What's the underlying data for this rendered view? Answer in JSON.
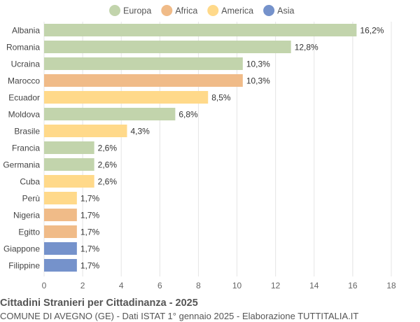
{
  "chart_data": {
    "type": "bar",
    "orientation": "horizontal",
    "title": "Cittadini Stranieri per Cittadinanza - 2025",
    "subtitle": "COMUNE DI AVEGNO (GE) - Dati ISTAT 1° gennaio 2025 - Elaborazione TUTTITALIA.IT",
    "legend": {
      "placement": "top",
      "entries": [
        {
          "name": "Europa",
          "color": "#c2d4ac"
        },
        {
          "name": "Africa",
          "color": "#f0bb88"
        },
        {
          "name": "America",
          "color": "#ffd98a"
        },
        {
          "name": "Asia",
          "color": "#7592cb"
        }
      ]
    },
    "xlim": [
      0,
      18
    ],
    "xticks": [
      0,
      2,
      4,
      6,
      8,
      10,
      12,
      14,
      16,
      18
    ],
    "grid": true,
    "categories": [
      "Albania",
      "Romania",
      "Ucraina",
      "Marocco",
      "Ecuador",
      "Moldova",
      "Brasile",
      "Francia",
      "Germania",
      "Cuba",
      "Perù",
      "Nigeria",
      "Egitto",
      "Giappone",
      "Filippine"
    ],
    "values": [
      16.2,
      12.8,
      10.3,
      10.3,
      8.5,
      6.8,
      4.3,
      2.6,
      2.6,
      2.6,
      1.7,
      1.7,
      1.7,
      1.7,
      1.7
    ],
    "labels": [
      "16,2%",
      "12,8%",
      "10,3%",
      "10,3%",
      "8,5%",
      "6,8%",
      "4,3%",
      "2,6%",
      "2,6%",
      "2,6%",
      "1,7%",
      "1,7%",
      "1,7%",
      "1,7%",
      "1,7%"
    ],
    "groups": [
      "Europa",
      "Europa",
      "Europa",
      "Africa",
      "America",
      "Europa",
      "America",
      "Europa",
      "Europa",
      "America",
      "America",
      "Africa",
      "Africa",
      "Asia",
      "Asia"
    ]
  }
}
